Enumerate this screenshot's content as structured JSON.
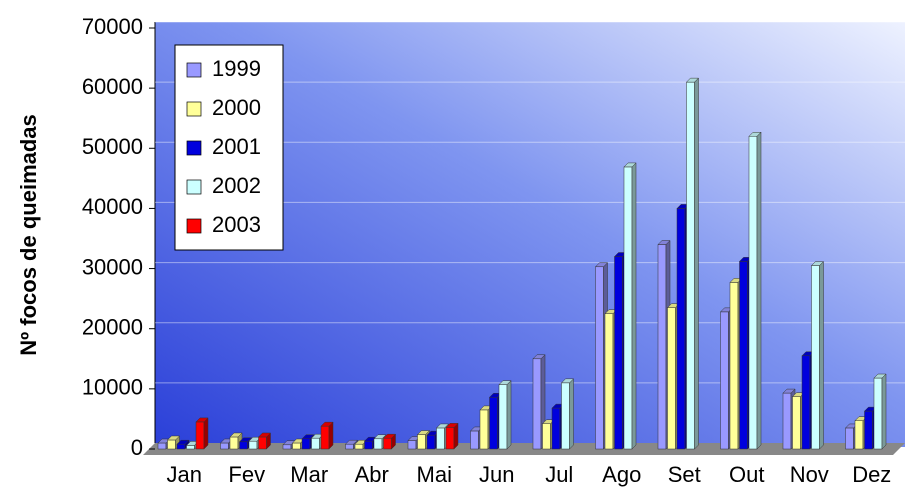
{
  "chart_data": {
    "type": "bar",
    "y_label": "Nº focos de queimadas",
    "categories": [
      "Jan",
      "Fev",
      "Mar",
      "Abr",
      "Mai",
      "Jun",
      "Jul",
      "Ago",
      "Set",
      "Out",
      "Nov",
      "Dez"
    ],
    "series": [
      {
        "name": "1999",
        "color": "#9999ff",
        "values": [
          1000,
          1000,
          700,
          800,
          1400,
          3000,
          15000,
          30300,
          34000,
          22800,
          9300,
          3500
        ]
      },
      {
        "name": "2000",
        "color": "#ffff99",
        "values": [
          1500,
          2000,
          1000,
          800,
          2400,
          6500,
          4200,
          22500,
          23500,
          27700,
          8700,
          4700
        ]
      },
      {
        "name": "2001",
        "color": "#0000dd",
        "values": [
          800,
          1200,
          1700,
          1300,
          2300,
          8600,
          6800,
          32000,
          40000,
          31200,
          15500,
          6300
        ]
      },
      {
        "name": "2002",
        "color": "#ccffff",
        "values": [
          600,
          1300,
          1800,
          1700,
          3500,
          10700,
          11000,
          46900,
          61000,
          52000,
          30500,
          11800
        ]
      },
      {
        "name": "2003",
        "color": "#ff0000",
        "values": [
          4500,
          2000,
          3800,
          1800,
          3600,
          null,
          null,
          null,
          null,
          null,
          null,
          null
        ]
      }
    ],
    "ylim": [
      0,
      70000
    ],
    "yticks": [
      0,
      10000,
      20000,
      30000,
      40000,
      50000,
      60000,
      70000
    ],
    "grid": true,
    "legend": "upper left"
  }
}
